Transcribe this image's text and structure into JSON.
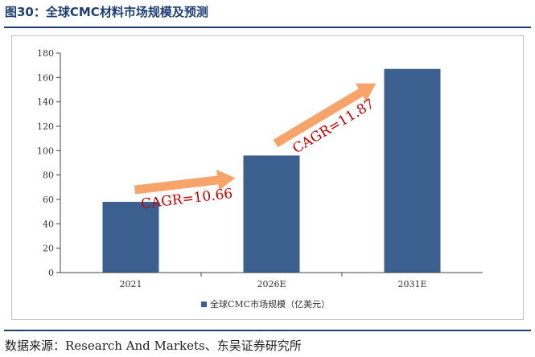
{
  "page": {
    "title": "图30：全球CMC材料市场规模及预测",
    "source": "数据来源：Research And Markets、东吴证券研究所"
  },
  "colors": {
    "title": "#1f3f74",
    "bar": "#3b5f8f",
    "arrow": "#f7a46b",
    "cagr_text": "#c00000",
    "axis": "#444444"
  },
  "chart_data": {
    "type": "bar",
    "categories": [
      "2021",
      "2026E",
      "2031E"
    ],
    "series": [
      {
        "name": "全球CMC市场规模（亿美元）",
        "values": [
          58,
          96,
          167
        ]
      }
    ],
    "ylim": [
      0,
      180
    ],
    "yticks": [
      0,
      20,
      40,
      60,
      80,
      100,
      120,
      140,
      160,
      180
    ],
    "legend": "bottom",
    "grid": false,
    "annotations": [
      {
        "text": "CAGR=10.66",
        "from": "2021",
        "to": "2026E"
      },
      {
        "text": "CAGR=11.87",
        "from": "2026E",
        "to": "2031E"
      }
    ]
  }
}
